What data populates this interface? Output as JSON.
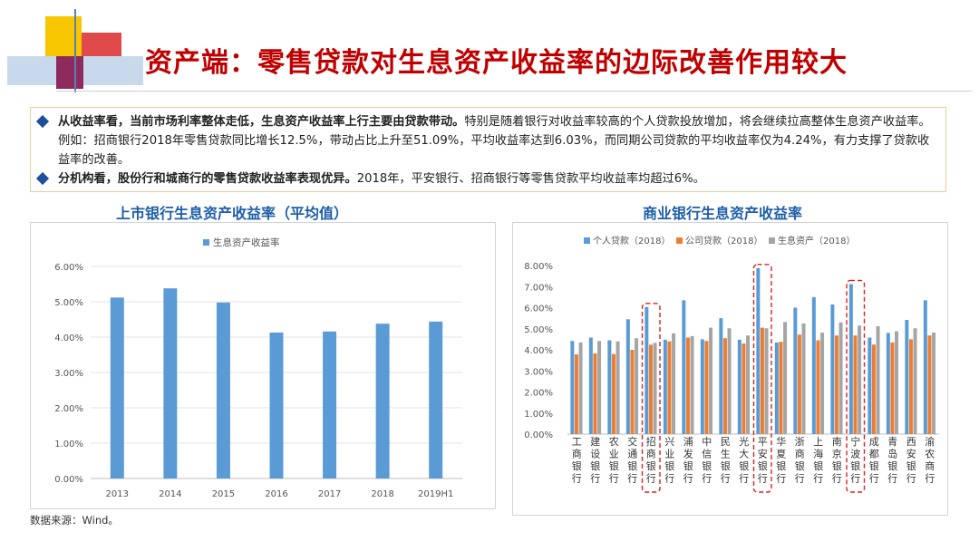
{
  "page": {
    "title": "资产端：零售贷款对生息资产收益率的边际改善作用较大",
    "source": "数据来源：Wind。",
    "colors": {
      "title_red": "#c00000",
      "deco_yellow": "#f7c600",
      "deco_red": "#e04a4a",
      "deco_purple": "#8e2a5c",
      "deco_blue": "#9ab6d8",
      "bullet_blue": "#1f4e9a",
      "series_blue": "#5b9bd5",
      "series_orange": "#ed7d31",
      "series_gray": "#a5a5a5",
      "highlight_red": "#e02020"
    }
  },
  "summary": {
    "bullet_icon": "diamond-bullet-icon",
    "bullets": [
      {
        "lead": "从收益率看，当前市场利率整体走低，生息资产收益率上行主要由贷款带动。",
        "text": "特别是随着银行对收益率较高的个人贷款投放增加，将会继续拉高整体生息资产收益率。例如：招商银行2018年零售贷款同比增长12.5%，带动占比上升至51.09%，平均收益率达到6.03%，而同期公司贷款的平均收益率仅为4.24%，有力支撑了贷款收益率的改善。"
      },
      {
        "lead": "分机构看，股份行和城商行的零售贷款收益率表现优异。",
        "text": "2018年，平安银行、招商银行等零售贷款平均收益率均超过6%。"
      }
    ]
  },
  "chart_data": [
    {
      "type": "bar",
      "title": "上市银行生息资产收益率（平均值）",
      "categories": [
        "2013",
        "2014",
        "2015",
        "2016",
        "2017",
        "2018",
        "2019H1"
      ],
      "series": [
        {
          "name": "生息资产收益率",
          "values": [
            5.12,
            5.38,
            4.98,
            4.13,
            4.16,
            4.38,
            4.44
          ]
        }
      ],
      "y_ticks": [
        "0.00%",
        "1.00%",
        "2.00%",
        "3.00%",
        "4.00%",
        "5.00%",
        "6.00%"
      ],
      "ylim": [
        0,
        6
      ],
      "grid": true,
      "legend": "top"
    },
    {
      "type": "bar",
      "title": "商业银行生息资产收益率",
      "categories": [
        "工商银行",
        "建设银行",
        "农业银行",
        "交通银行",
        "招商银行",
        "兴业银行",
        "浦发银行",
        "中信银行",
        "民生银行",
        "光大银行",
        "平安银行",
        "华夏银行",
        "浙商银行",
        "上海银行",
        "南京银行",
        "宁波银行",
        "成都银行",
        "青岛银行",
        "西安银行",
        "渝农商行"
      ],
      "series": [
        {
          "name": "个人贷款（2018）",
          "values": [
            4.42,
            4.58,
            4.45,
            5.45,
            6.03,
            4.48,
            6.35,
            4.5,
            5.5,
            4.48,
            7.88,
            4.35,
            6.0,
            6.5,
            6.15,
            7.12,
            4.58,
            4.8,
            5.42,
            6.35
          ]
        },
        {
          "name": "公司贷款（2018）",
          "values": [
            3.78,
            3.83,
            3.8,
            4.0,
            4.24,
            4.4,
            4.58,
            4.42,
            4.55,
            4.3,
            5.05,
            4.38,
            4.72,
            4.45,
            4.68,
            4.68,
            4.25,
            4.35,
            4.5,
            4.68
          ]
        },
        {
          "name": "生息资产（2018）",
          "values": [
            4.35,
            4.42,
            4.4,
            4.55,
            4.33,
            4.78,
            4.65,
            5.05,
            5.02,
            4.68,
            5.02,
            5.32,
            5.25,
            4.82,
            5.3,
            5.15,
            5.12,
            4.88,
            5.02,
            4.82
          ]
        }
      ],
      "y_ticks": [
        "0.00%",
        "1.00%",
        "2.00%",
        "3.00%",
        "4.00%",
        "5.00%",
        "6.00%",
        "7.00%",
        "8.00%"
      ],
      "ylim": [
        0,
        8
      ],
      "grid": false,
      "legend": "top",
      "highlighted_categories": [
        "招商银行",
        "平安银行",
        "宁波银行"
      ]
    }
  ]
}
